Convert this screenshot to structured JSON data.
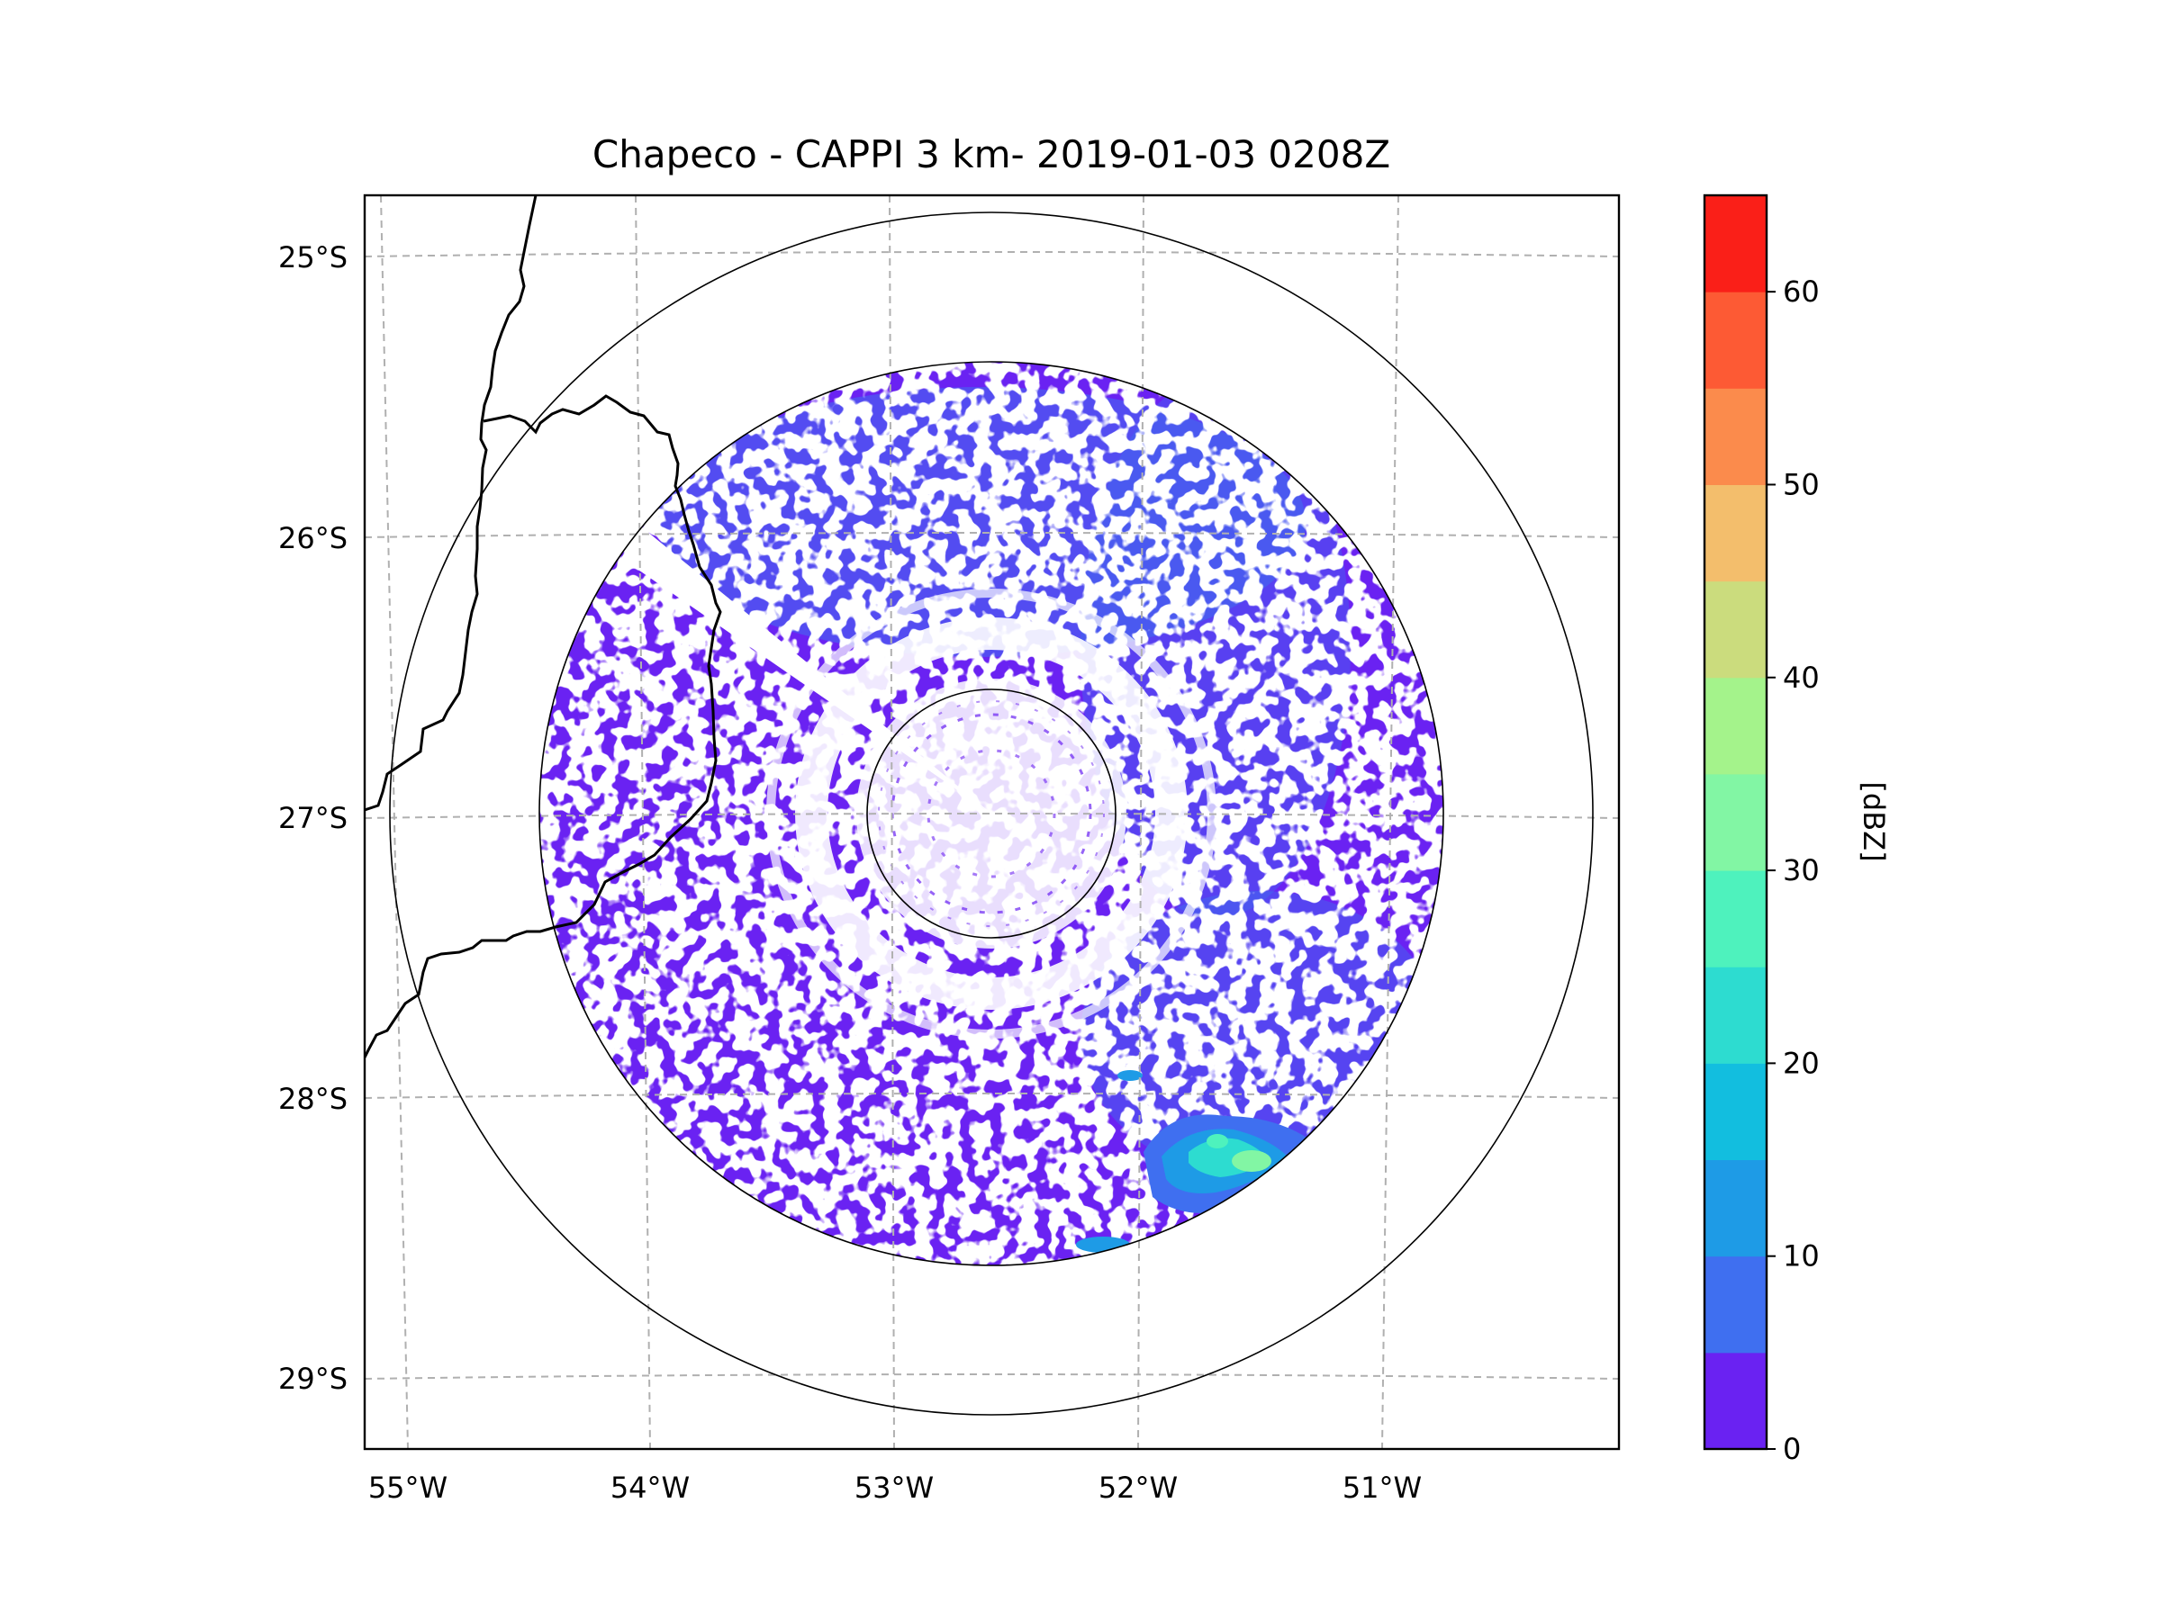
{
  "chart_data": {
    "type": "heatmap",
    "title": "Chapeco - CAPPI 3 km- 2019-01-03 0208Z",
    "radar_site": "Chapeco",
    "product": "CAPPI 3 km",
    "datetime": "2019-01-03 0208Z",
    "center": {
      "lon": -52.6,
      "lat": -27.0
    },
    "xlim": [
      -55.2,
      -50.05
    ],
    "ylim": [
      -29.3,
      -24.78
    ],
    "lon_ticks": [
      {
        "value": -55,
        "label": "55°W"
      },
      {
        "value": -54,
        "label": "54°W"
      },
      {
        "value": -53,
        "label": "53°W"
      },
      {
        "value": -52,
        "label": "52°W"
      },
      {
        "value": -51,
        "label": "51°W"
      }
    ],
    "lat_ticks": [
      {
        "value": -25,
        "label": "25°S"
      },
      {
        "value": -26,
        "label": "26°S"
      },
      {
        "value": -27,
        "label": "27°S"
      },
      {
        "value": -28,
        "label": "28°S"
      },
      {
        "value": -29,
        "label": "29°S"
      }
    ],
    "range_rings_deg": [
      0.5,
      1.84,
      2.45
    ],
    "data_max_range_deg": 1.84,
    "colorbar": {
      "label": "[dBZ]",
      "min": 0,
      "max": 65,
      "ticks": [
        "0",
        "10",
        "20",
        "30",
        "40",
        "50",
        "60"
      ],
      "bins": [
        {
          "from": 0,
          "to": 5,
          "color": "#6a22f2"
        },
        {
          "from": 5,
          "to": 10,
          "color": "#3f6ff0"
        },
        {
          "from": 10,
          "to": 15,
          "color": "#1e9be6"
        },
        {
          "from": 15,
          "to": 20,
          "color": "#12bedf"
        },
        {
          "from": 20,
          "to": 25,
          "color": "#2ddcd0"
        },
        {
          "from": 25,
          "to": 30,
          "color": "#4ef2bd"
        },
        {
          "from": 30,
          "to": 35,
          "color": "#82f6a4"
        },
        {
          "from": 35,
          "to": 40,
          "color": "#a4f38b"
        },
        {
          "from": 40,
          "to": 45,
          "color": "#cbdc7d"
        },
        {
          "from": 45,
          "to": 50,
          "color": "#f3be6c"
        },
        {
          "from": 50,
          "to": 55,
          "color": "#fb8b4c"
        },
        {
          "from": 55,
          "to": 60,
          "color": "#fd5a34"
        },
        {
          "from": 60,
          "to": 65,
          "color": "#fa1f18"
        }
      ]
    },
    "annotations": [
      "Weak echoes (0-10 dBZ) cover most of the radar domain",
      "Stronger echoes (15-40 dBZ) in the south-east near 28.2°S 51.5°W"
    ]
  }
}
